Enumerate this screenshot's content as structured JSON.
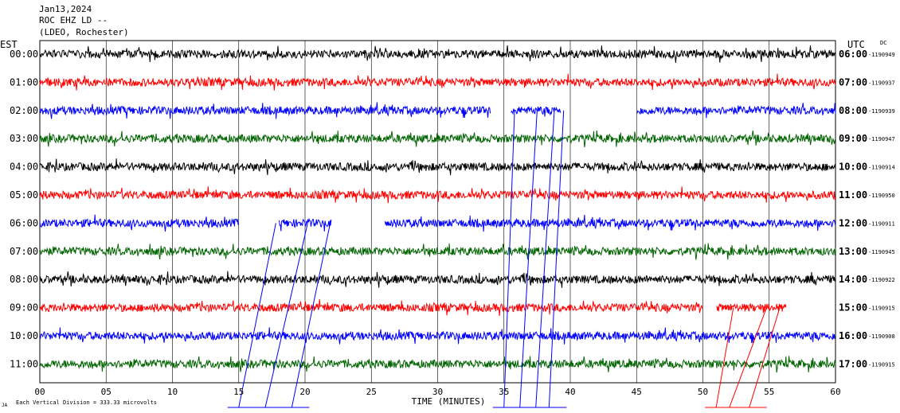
{
  "header": {
    "date": "Jan13,2024",
    "station": "ROC EHZ LD --",
    "network": "(LDEO, Rochester)"
  },
  "chart_data": {
    "type": "line",
    "title": "Jan13,2024",
    "left_axis_label": "EST",
    "right_axis_label": "UTC",
    "right_axis_sublabel": "DC",
    "xlabel": "TIME (MINUTES)",
    "xlim": [
      0,
      60
    ],
    "x_ticks": [
      "00",
      "05",
      "10",
      "15",
      "20",
      "25",
      "30",
      "35",
      "40",
      "45",
      "50",
      "55",
      "60"
    ],
    "footnote_marker": "JA",
    "scale_note": "Each Vertical Division =  333.33 microvolts",
    "grid": true,
    "rows": [
      {
        "est": "00:00",
        "utc": "06:00",
        "dc": "-1190949",
        "color": "#000000",
        "gaps": []
      },
      {
        "est": "01:00",
        "utc": "07:00",
        "dc": "-1190937",
        "color": "#ff0000",
        "gaps": []
      },
      {
        "est": "02:00",
        "utc": "08:00",
        "dc": "-1190939",
        "color": "#0000ff",
        "gaps": [
          [
            34.0,
            35.5
          ],
          [
            39.3,
            45.0
          ]
        ]
      },
      {
        "est": "03:00",
        "utc": "09:00",
        "dc": "-1190947",
        "color": "#006400",
        "gaps": []
      },
      {
        "est": "04:00",
        "utc": "10:00",
        "dc": "-1190914",
        "color": "#000000",
        "gaps": []
      },
      {
        "est": "05:00",
        "utc": "11:00",
        "dc": "-1190950",
        "color": "#ff0000",
        "gaps": []
      },
      {
        "est": "06:00",
        "utc": "12:00",
        "dc": "-1190911",
        "color": "#0000ff",
        "gaps": [
          [
            15.0,
            18.0
          ],
          [
            22.0,
            26.0
          ]
        ]
      },
      {
        "est": "07:00",
        "utc": "13:00",
        "dc": "-1190945",
        "color": "#006400",
        "gaps": []
      },
      {
        "est": "08:00",
        "utc": "14:00",
        "dc": "-1190922",
        "color": "#000000",
        "gaps": []
      },
      {
        "est": "09:00",
        "utc": "15:00",
        "dc": "-1190915",
        "color": "#ff0000",
        "gaps": [
          [
            50.0,
            51.0
          ],
          [
            56.3,
            60.0
          ]
        ]
      },
      {
        "est": "10:00",
        "utc": "16:00",
        "dc": "-1190908",
        "color": "#0000ff",
        "gaps": []
      },
      {
        "est": "11:00",
        "utc": "17:00",
        "dc": "-1190915",
        "color": "#006400",
        "gaps": []
      }
    ],
    "event_streaks": [
      {
        "color": "#0000ff",
        "from_row": 6,
        "x_start": [
          17.8,
          20.2,
          21.9
        ],
        "x_end": [
          15.0,
          17.0,
          19.0
        ]
      },
      {
        "color": "#0000ff",
        "from_row": 2,
        "x_start": [
          35.8,
          37.5,
          38.8,
          39.5
        ],
        "x_end": [
          35.0,
          36.2,
          37.4,
          38.4
        ]
      },
      {
        "color": "#ff0000",
        "from_row": 9,
        "x_start": [
          52.3,
          54.8,
          55.8
        ],
        "x_end": [
          51.0,
          52.0,
          53.5
        ]
      }
    ]
  }
}
